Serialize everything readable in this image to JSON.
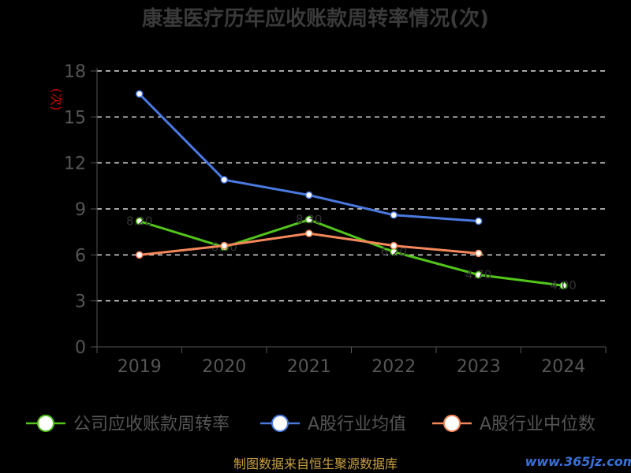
{
  "chart_data": {
    "type": "line",
    "title": "康基医疗历年应收账款周转率情况(次)",
    "ylabel": "(次)",
    "x": [
      "2019",
      "2020",
      "2021",
      "2022",
      "2023",
      "2024"
    ],
    "ylim": [
      0,
      18
    ],
    "yticks": [
      0,
      3,
      6,
      9,
      12,
      15,
      18
    ],
    "grid": true,
    "legend_position": "bottom",
    "series": [
      {
        "name": "公司应收账款周转率",
        "color": "#52c41a",
        "values": [
          8.2,
          6.5,
          8.3,
          6.2,
          4.7,
          4.0
        ]
      },
      {
        "name": "A股行业均值",
        "color": "#4a7ae0",
        "values": [
          16.5,
          10.9,
          9.9,
          8.6,
          8.2,
          null
        ]
      },
      {
        "name": "A股行业中位数",
        "color": "#f5885a",
        "values": [
          6.0,
          6.6,
          7.4,
          6.6,
          6.1,
          null
        ]
      }
    ]
  },
  "footer": "制图数据来自恒生聚源数据库",
  "watermark": "www.365jz.com"
}
